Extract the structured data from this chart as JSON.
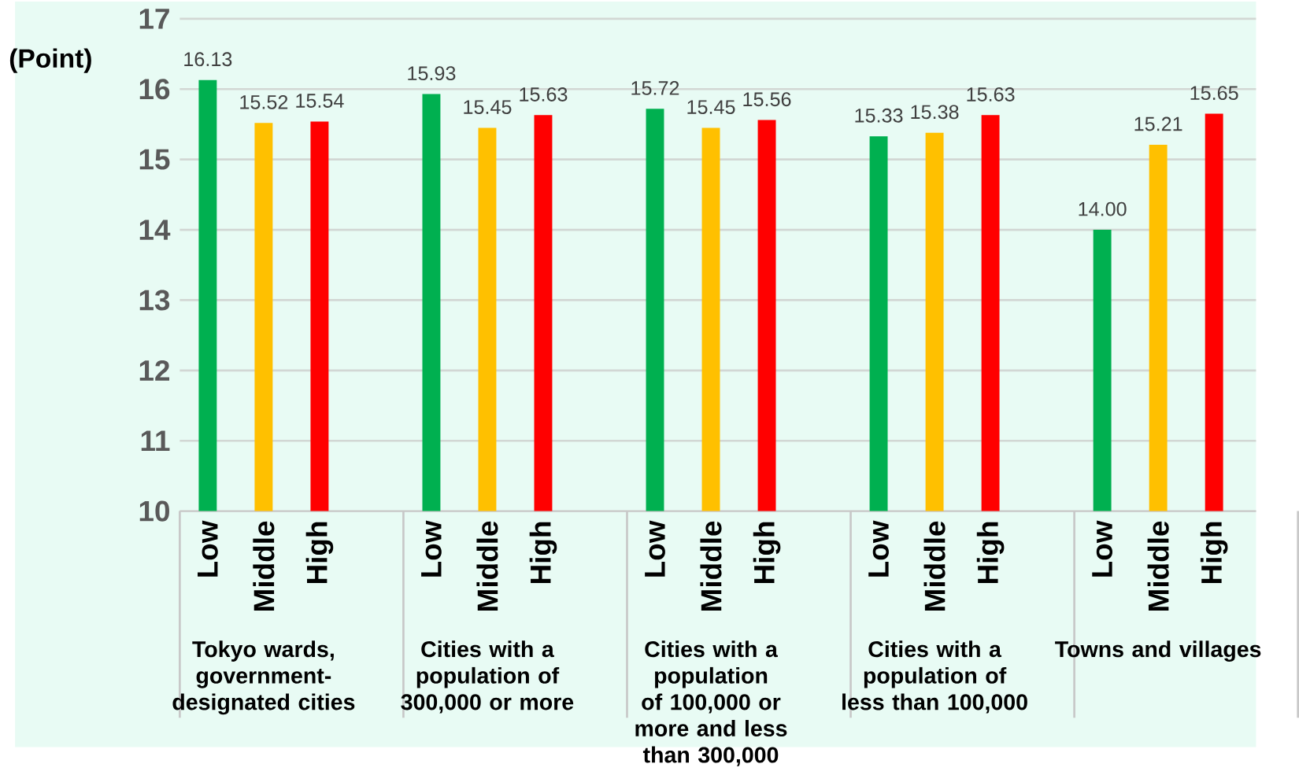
{
  "chart_data": {
    "type": "bar",
    "ylabel": "(Point)",
    "categories": [
      "Low",
      "Middle",
      "High",
      "Low",
      "Middle",
      "High",
      "Low",
      "Middle",
      "High",
      "Low",
      "Middle",
      "High",
      "Low",
      "Middle",
      "High"
    ],
    "values": [
      16.13,
      15.52,
      15.54,
      15.93,
      15.45,
      15.63,
      15.72,
      15.45,
      15.56,
      15.33,
      15.38,
      15.63,
      14.0,
      15.21,
      15.65
    ],
    "colors": [
      "#00b050",
      "#ffc000",
      "#ff0000",
      "#00b050",
      "#ffc000",
      "#ff0000",
      "#00b050",
      "#ffc000",
      "#ff0000",
      "#00b050",
      "#ffc000",
      "#ff0000",
      "#00b050",
      "#ffc000",
      "#ff0000"
    ],
    "value_labels": [
      "16.13",
      "15.52",
      "15.54",
      "15.93",
      "15.45",
      "15.63",
      "15.72",
      "15.45",
      "15.56",
      "15.33",
      "15.38",
      "15.63",
      "14.00",
      "15.21",
      "15.65"
    ],
    "annotations": [
      "Tokyo wards, government-designated cities",
      "Cities with a population of 300,000 or more",
      "Cities with a population of 100,000 or more and less than 300,000",
      "Cities with a population of less than 100,000",
      "Towns and villages"
    ],
    "ylim": [
      10,
      17
    ],
    "yticks": [
      10,
      11,
      12,
      13,
      14,
      15,
      16,
      17
    ],
    "grid": "y"
  }
}
